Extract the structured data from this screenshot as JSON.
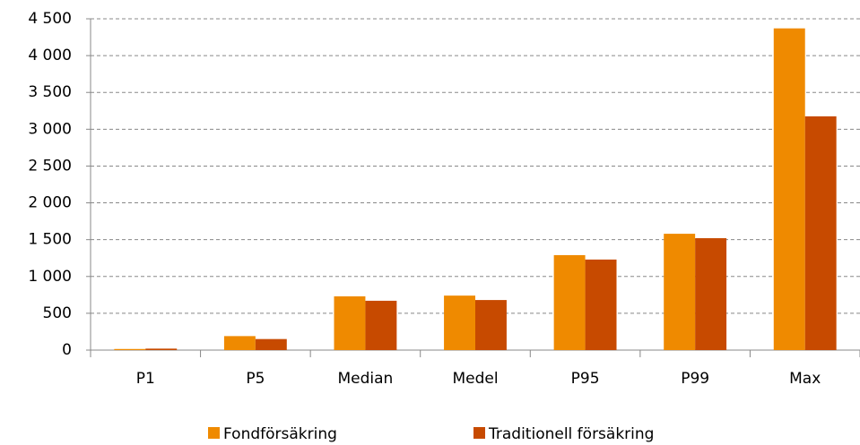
{
  "chart_data": {
    "type": "bar",
    "categories": [
      "P1",
      "P5",
      "Median",
      "Medel",
      "P95",
      "P99",
      "Max"
    ],
    "series": [
      {
        "name": "Fondförsäkring",
        "color": "#ef8a00",
        "values": [
          15,
          190,
          730,
          740,
          1290,
          1580,
          4370
        ]
      },
      {
        "name": "Traditionell försäkring",
        "color": "#c74a00",
        "values": [
          20,
          150,
          670,
          680,
          1230,
          1520,
          3175
        ]
      }
    ],
    "ylim": [
      0,
      4500
    ],
    "yticks": [
      0,
      500,
      {
        "value": 1000,
        "label": "1 000"
      },
      {
        "value": 1500,
        "label": "1 500"
      },
      {
        "value": 2000,
        "label": "2 000"
      },
      {
        "value": 2500,
        "label": "2 500"
      },
      {
        "value": 3000,
        "label": "3 000"
      },
      {
        "value": 3500,
        "label": "3 500"
      },
      {
        "value": 4000,
        "label": "4 000"
      },
      {
        "value": 4500,
        "label": "4 500"
      }
    ],
    "grid": true
  }
}
